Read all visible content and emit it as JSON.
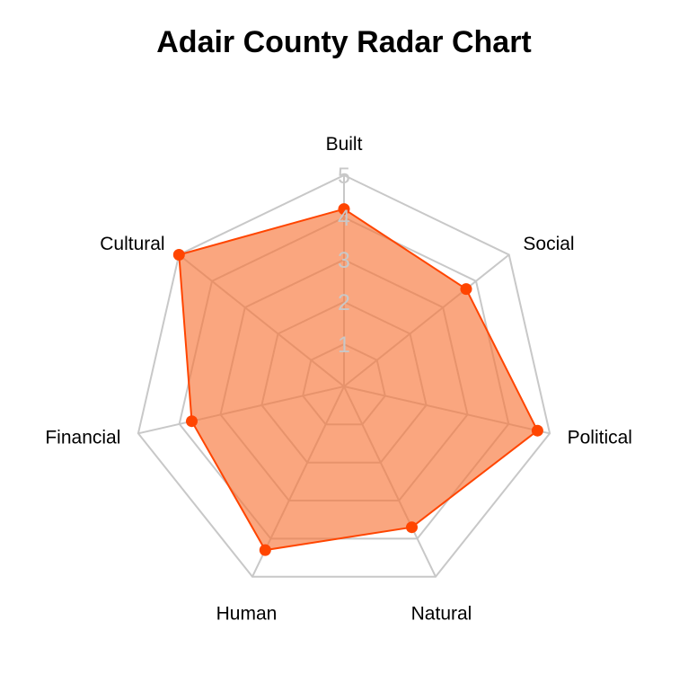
{
  "chart_data": {
    "type": "radar",
    "title": "Adair County Radar Chart",
    "axes": [
      "Built",
      "Social",
      "Political",
      "Natural",
      "Human",
      "Financial",
      "Cultural"
    ],
    "values": [
      4.2,
      3.7,
      4.7,
      3.7,
      4.3,
      3.7,
      5.0
    ],
    "rlim": [
      0,
      5
    ],
    "ticks": [
      1,
      2,
      3,
      4,
      5
    ],
    "grid": true,
    "colors": {
      "fill": "#F8763A",
      "line": "#FF4500",
      "marker": "#FF4500",
      "grid": "#C8C8C8",
      "tick_text": "#C8C8C8"
    }
  }
}
